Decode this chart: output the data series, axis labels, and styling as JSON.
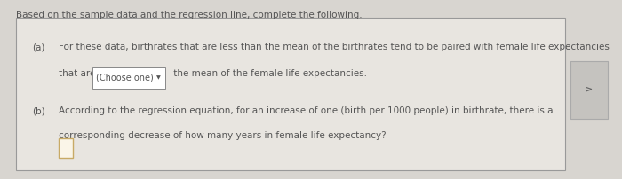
{
  "background_color": "#d8d5d0",
  "header_text": "Based on the sample data and the regression line, complete the following.",
  "header_fontsize": 7.8,
  "text_color": "#555555",
  "box_bg_color": "#e8e5e0",
  "box_edge_color": "#999999",
  "part_a_label": "(a)",
  "part_a_line1": "For these data, birthrates that are less than the mean of the birthrates tend to be paired with female life expectancies",
  "part_a_line2_pre": "that are ",
  "part_a_dropdown": "(Choose one)",
  "part_a_line2_post": " the mean of the female life expectancies.",
  "part_b_label": "(b)",
  "part_b_line1": "According to the regression equation, for an increase of one (birth per 1000 people) in birthrate, there is a",
  "part_b_line2": "corresponding decrease of how many years in female life expectancy?",
  "answer_box_color_edge": "#c8aa66",
  "answer_box_fill": "#faf5e8",
  "text_fontsize": 7.5,
  "dropdown_box_fill": "#ffffff",
  "dropdown_edge_color": "#888888",
  "right_button_color": "#c5c3bf",
  "right_button_edge": "#aaaaaa",
  "triangle_char": "▼"
}
